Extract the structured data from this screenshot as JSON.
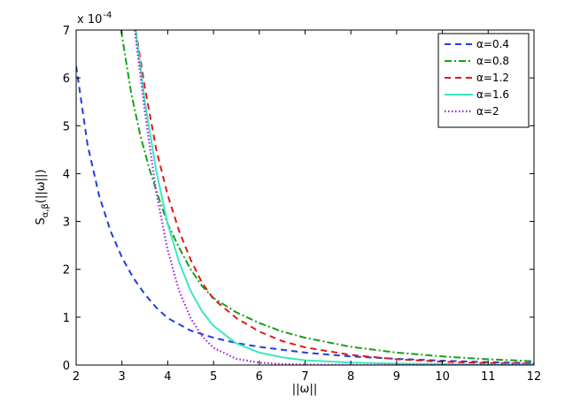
{
  "chart_data": {
    "type": "line",
    "xlabel": "||ω||",
    "ylabel_main": "S",
    "ylabel_sub": "α,β",
    "ylabel_tail": "(||ω||)",
    "y_exponent_prefix": "x 10",
    "y_exponent_power": "-4",
    "xlim": [
      2,
      12
    ],
    "ylim": [
      0,
      7
    ],
    "x_ticks": [
      "2",
      "3",
      "4",
      "5",
      "6",
      "7",
      "8",
      "9",
      "10",
      "11",
      "12"
    ],
    "y_ticks": [
      "0",
      "1",
      "2",
      "3",
      "4",
      "5",
      "6",
      "7"
    ],
    "grid": false,
    "legend_position": "top-right",
    "series": [
      {
        "name": "α=0.4",
        "color": "#1f3fe0",
        "dash": "dashed",
        "x": [
          2,
          2.25,
          2.5,
          2.75,
          3,
          3.25,
          3.5,
          3.75,
          4,
          4.5,
          5,
          5.5,
          6,
          7,
          8,
          9,
          10,
          11,
          12
        ],
        "y": [
          6.25,
          4.6,
          3.55,
          2.8,
          2.25,
          1.82,
          1.48,
          1.2,
          0.98,
          0.72,
          0.57,
          0.46,
          0.38,
          0.26,
          0.18,
          0.13,
          0.09,
          0.06,
          0.04
        ]
      },
      {
        "name": "α=0.8",
        "color": "#1a9e1a",
        "dash": "dashdot",
        "x": [
          2.98,
          3.2,
          3.4,
          3.6,
          3.8,
          4,
          4.25,
          4.5,
          4.75,
          5,
          5.5,
          6,
          6.5,
          7,
          8,
          9,
          10,
          11,
          12
        ],
        "y": [
          7,
          5.7,
          4.8,
          4.1,
          3.5,
          2.95,
          2.45,
          2.0,
          1.65,
          1.4,
          1.1,
          0.88,
          0.7,
          0.57,
          0.38,
          0.26,
          0.18,
          0.12,
          0.08
        ]
      },
      {
        "name": "α=1.2",
        "color": "#e01a1a",
        "dash": "dashed",
        "x": [
          3.3,
          3.5,
          3.75,
          4,
          4.25,
          4.5,
          4.75,
          5,
          5.5,
          6,
          6.5,
          7,
          8,
          9,
          10,
          11,
          12
        ],
        "y": [
          7,
          5.8,
          4.5,
          3.55,
          2.8,
          2.2,
          1.72,
          1.38,
          0.98,
          0.7,
          0.5,
          0.37,
          0.21,
          0.12,
          0.07,
          0.04,
          0.03
        ]
      },
      {
        "name": "α=1.6",
        "color": "#3de8c0",
        "dash": "solid",
        "x": [
          3.3,
          3.5,
          3.75,
          4,
          4.25,
          4.5,
          4.75,
          5,
          5.5,
          6,
          6.5,
          7,
          8,
          9,
          10,
          11,
          12
        ],
        "y": [
          7,
          5.5,
          4.05,
          2.95,
          2.15,
          1.55,
          1.12,
          0.82,
          0.45,
          0.26,
          0.16,
          0.1,
          0.05,
          0.03,
          0.02,
          0.01,
          0.01
        ]
      },
      {
        "name": "α=2",
        "color": "#a020e0",
        "dash": "dotted",
        "x": [
          3.28,
          3.5,
          3.75,
          4,
          4.25,
          4.5,
          4.75,
          5,
          5.5,
          6,
          6.5,
          7,
          8,
          9,
          10,
          11,
          12
        ],
        "y": [
          7,
          5.3,
          3.6,
          2.4,
          1.55,
          0.98,
          0.6,
          0.36,
          0.13,
          0.05,
          0.02,
          0.01,
          0,
          0,
          0,
          0,
          0
        ]
      }
    ]
  }
}
